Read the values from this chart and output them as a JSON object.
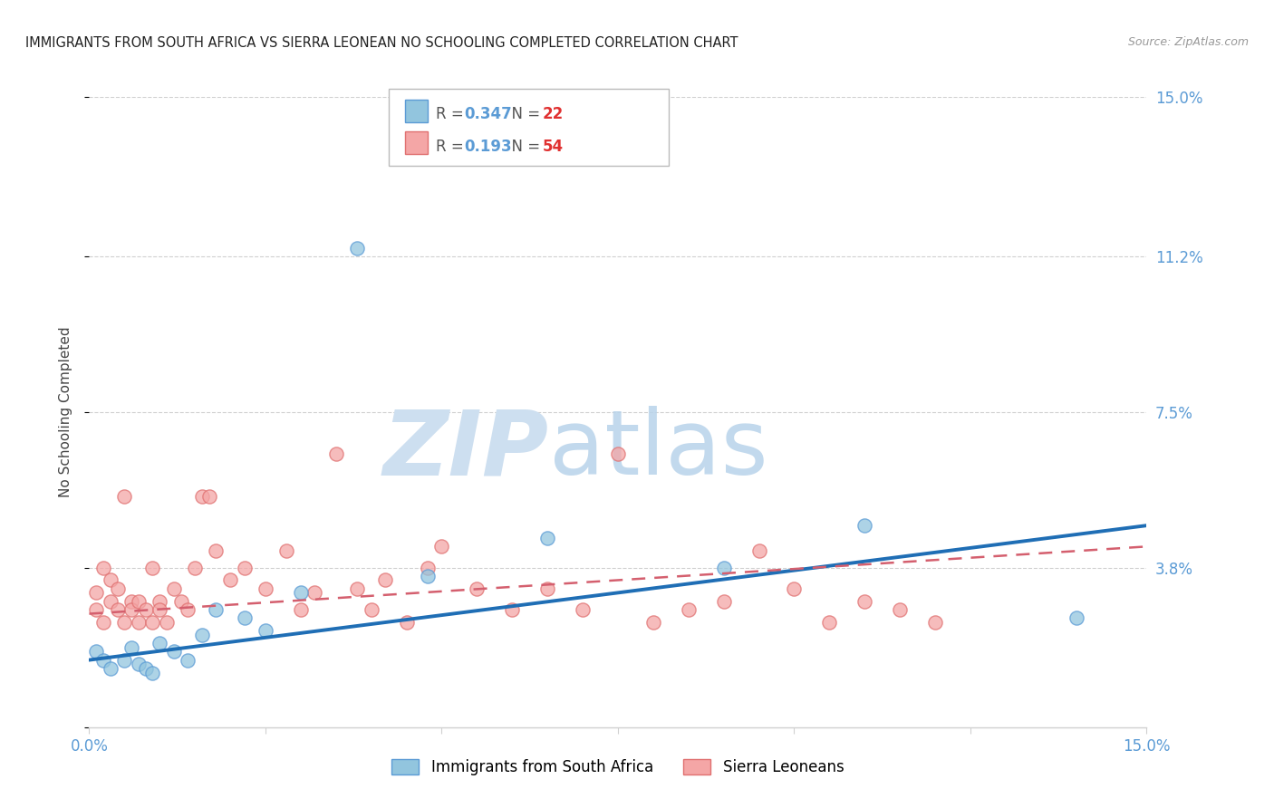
{
  "title": "IMMIGRANTS FROM SOUTH AFRICA VS SIERRA LEONEAN NO SCHOOLING COMPLETED CORRELATION CHART",
  "source": "Source: ZipAtlas.com",
  "ylabel": "No Schooling Completed",
  "xlim": [
    0.0,
    0.15
  ],
  "ylim": [
    0.0,
    0.15
  ],
  "ytick_values": [
    0.0,
    0.038,
    0.075,
    0.112,
    0.15
  ],
  "ytick_labels_right": [
    "",
    "3.8%",
    "7.5%",
    "11.2%",
    "15.0%"
  ],
  "xtick_values": [
    0.0,
    0.025,
    0.05,
    0.075,
    0.1,
    0.125,
    0.15
  ],
  "legend_blue_r": "0.347",
  "legend_blue_n": "22",
  "legend_pink_r": "0.193",
  "legend_pink_n": "54",
  "legend_blue_label": "Immigrants from South Africa",
  "legend_pink_label": "Sierra Leoneans",
  "blue_color": "#92c5de",
  "pink_color": "#f4a6a6",
  "blue_edge_color": "#5b9bd5",
  "pink_edge_color": "#e07070",
  "blue_line_color": "#1f6eb5",
  "pink_line_color": "#d45f6e",
  "background_color": "#ffffff",
  "grid_color": "#d0d0d0",
  "blue_points_x": [
    0.001,
    0.002,
    0.003,
    0.005,
    0.006,
    0.007,
    0.008,
    0.009,
    0.01,
    0.012,
    0.014,
    0.016,
    0.018,
    0.022,
    0.025,
    0.03,
    0.038,
    0.048,
    0.065,
    0.09,
    0.11,
    0.14
  ],
  "blue_points_y": [
    0.018,
    0.016,
    0.014,
    0.016,
    0.019,
    0.015,
    0.014,
    0.013,
    0.02,
    0.018,
    0.016,
    0.022,
    0.028,
    0.026,
    0.023,
    0.032,
    0.114,
    0.036,
    0.045,
    0.038,
    0.048,
    0.026
  ],
  "pink_points_x": [
    0.001,
    0.001,
    0.002,
    0.002,
    0.003,
    0.003,
    0.004,
    0.004,
    0.005,
    0.005,
    0.006,
    0.006,
    0.007,
    0.007,
    0.008,
    0.009,
    0.009,
    0.01,
    0.01,
    0.011,
    0.012,
    0.013,
    0.014,
    0.015,
    0.016,
    0.017,
    0.018,
    0.02,
    0.022,
    0.025,
    0.028,
    0.03,
    0.032,
    0.035,
    0.038,
    0.04,
    0.042,
    0.045,
    0.048,
    0.05,
    0.055,
    0.06,
    0.065,
    0.07,
    0.075,
    0.08,
    0.085,
    0.09,
    0.095,
    0.1,
    0.105,
    0.11,
    0.115,
    0.12
  ],
  "pink_points_y": [
    0.028,
    0.032,
    0.025,
    0.038,
    0.03,
    0.035,
    0.028,
    0.033,
    0.025,
    0.055,
    0.03,
    0.028,
    0.025,
    0.03,
    0.028,
    0.025,
    0.038,
    0.03,
    0.028,
    0.025,
    0.033,
    0.03,
    0.028,
    0.038,
    0.055,
    0.055,
    0.042,
    0.035,
    0.038,
    0.033,
    0.042,
    0.028,
    0.032,
    0.065,
    0.033,
    0.028,
    0.035,
    0.025,
    0.038,
    0.043,
    0.033,
    0.028,
    0.033,
    0.028,
    0.065,
    0.025,
    0.028,
    0.03,
    0.042,
    0.033,
    0.025,
    0.03,
    0.028,
    0.025
  ],
  "blue_trendline_x": [
    0.0,
    0.15
  ],
  "blue_trendline_y": [
    0.016,
    0.048
  ],
  "pink_trendline_x": [
    0.0,
    0.15
  ],
  "pink_trendline_y": [
    0.027,
    0.043
  ],
  "marker_size": 120
}
